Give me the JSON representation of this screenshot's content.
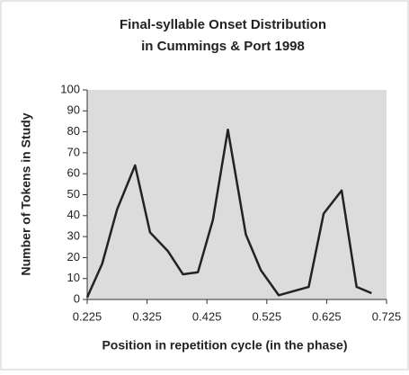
{
  "chart_data": {
    "type": "line",
    "title": "Final-syllable Onset Distribution",
    "subtitle": "in Cummings & Port 1998",
    "xlabel": "Position in repetition cycle (in the phase)",
    "ylabel": "Number of Tokens in Study",
    "x": [
      0.225,
      0.25,
      0.275,
      0.305,
      0.33,
      0.36,
      0.385,
      0.41,
      0.435,
      0.46,
      0.49,
      0.515,
      0.545,
      0.57,
      0.595,
      0.62,
      0.65,
      0.675,
      0.7
    ],
    "series": [
      {
        "name": "Tokens",
        "color": "#222222",
        "values": [
          1,
          17,
          43,
          64,
          32,
          23,
          12,
          13,
          38,
          81,
          31,
          14,
          2,
          4,
          6,
          41,
          52,
          6,
          3
        ]
      }
    ],
    "xlim": [
      0.225,
      0.725
    ],
    "xticks": [
      0.225,
      0.325,
      0.425,
      0.525,
      0.625,
      0.725
    ],
    "ylim": [
      0,
      100
    ],
    "yticks": [
      0,
      10,
      20,
      30,
      40,
      50,
      60,
      70,
      80,
      90,
      100
    ],
    "plot_background": "#dcdcdc"
  }
}
